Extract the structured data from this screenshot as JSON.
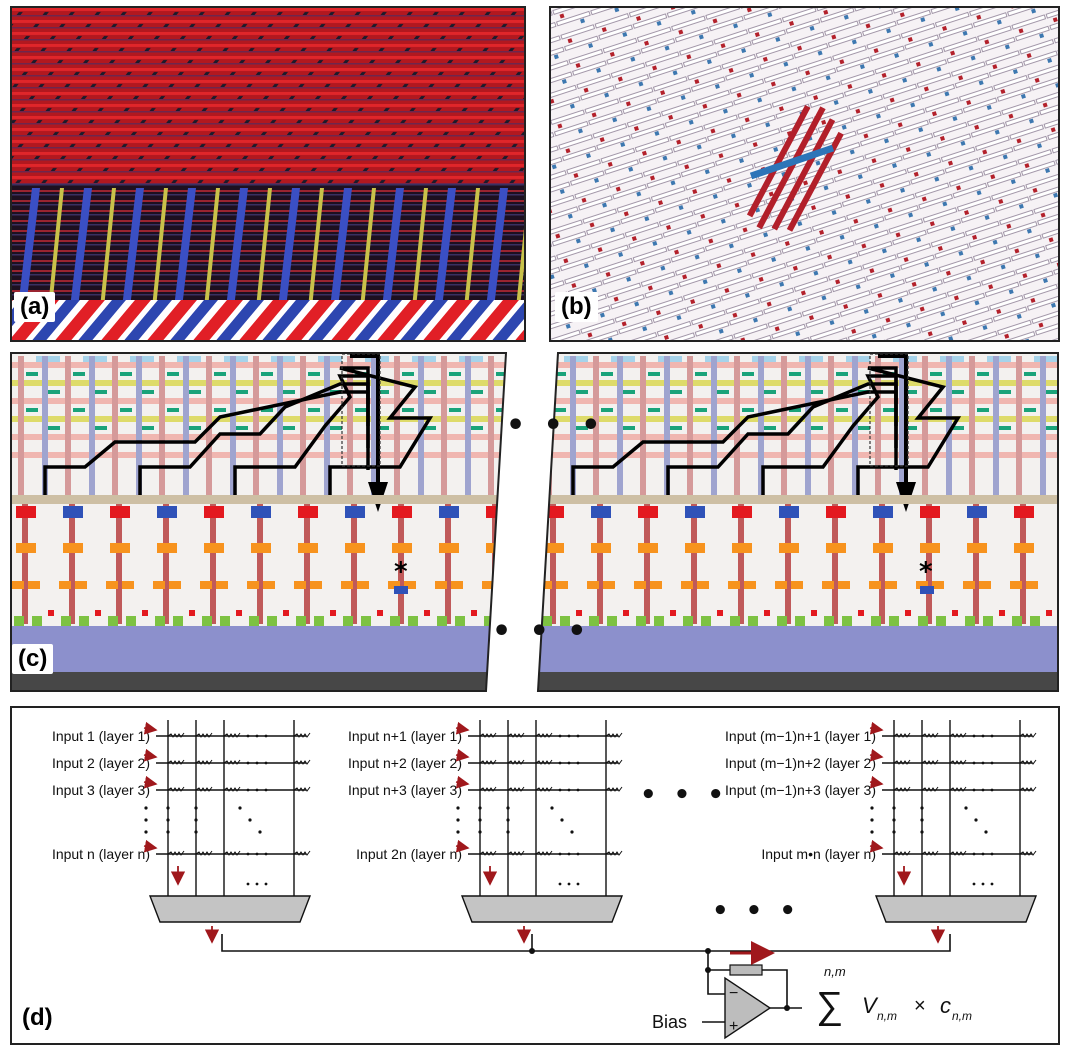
{
  "panels": {
    "a": {
      "label": "(a)"
    },
    "b": {
      "label": "(b)"
    },
    "c": {
      "label": "(c)",
      "marker": "*",
      "ellipsis": "• • •"
    },
    "d": {
      "label": "(d)",
      "ellipsis": "• • •"
    }
  },
  "crossbar_groups": [
    {
      "inputs": [
        "Input 1 (layer 1)",
        "Input 2 (layer 2)",
        "Input 3 (layer 3)",
        "Input n (layer n)"
      ]
    },
    {
      "inputs": [
        "Input n+1 (layer 1)",
        "Input n+2 (layer 2)",
        "Input n+3 (layer 3)",
        "Input 2n (layer n)"
      ]
    },
    {
      "inputs": [
        "Input (m−1)n+1 (layer 1)",
        "Input (m−1)n+2 (layer 2)",
        "Input (m−1)n+3 (layer 3)",
        "Input m•n (layer n)"
      ]
    }
  ],
  "bias_label": "Bias",
  "opamp": {
    "minus": "−",
    "plus": "+"
  },
  "output_formula": {
    "sum": "∑",
    "limits": "n,m",
    "term": "V",
    "term_sub": "n,m",
    "times": "×",
    "coef": "c",
    "coef_sub": "n,m"
  },
  "colors": {
    "red": "#e3191f",
    "blue": "#2f52b8",
    "orange": "#f7931e",
    "green": "#7dc242",
    "dark_red": "#a21e24",
    "arrow": "#a0181c"
  }
}
